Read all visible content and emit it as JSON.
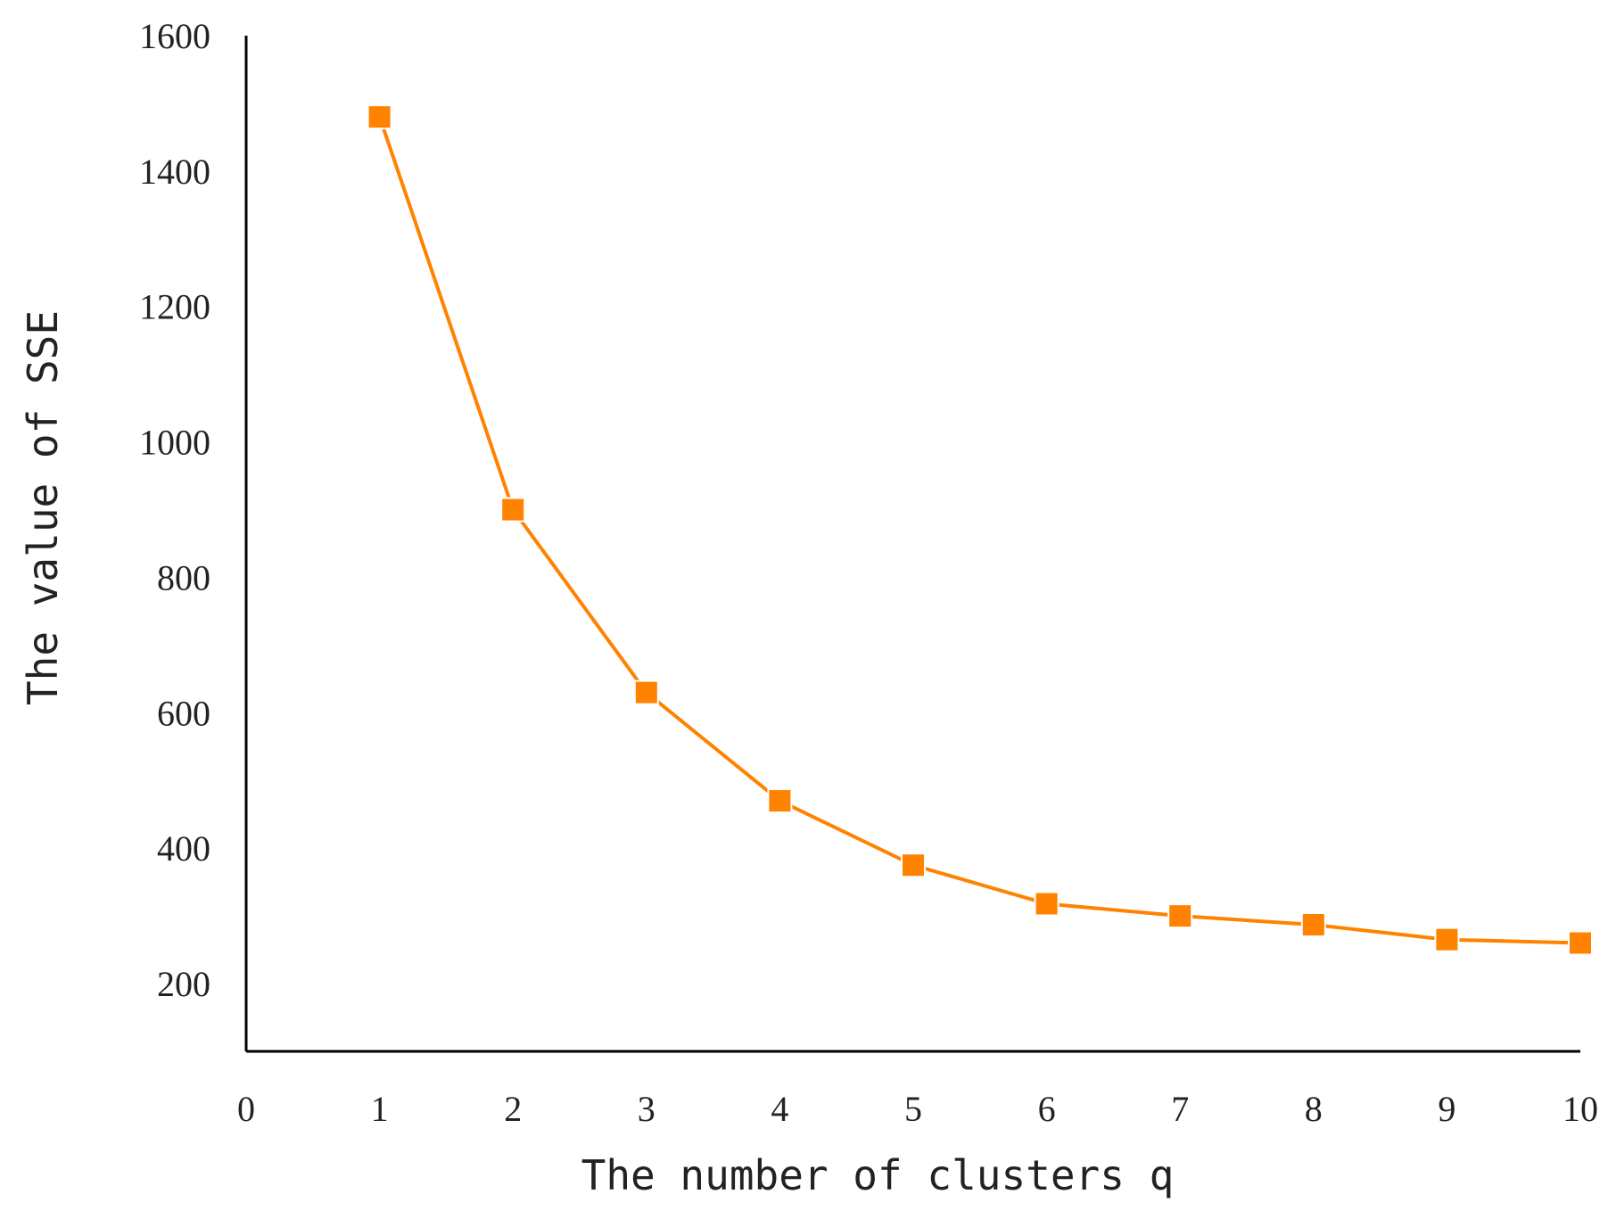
{
  "chart_data": {
    "type": "line",
    "title": "",
    "xlabel": "The number of clusters q",
    "ylabel": "The value of SSE",
    "xlim": [
      0,
      10
    ],
    "ylim": [
      100,
      1600
    ],
    "x_ticks": [
      0,
      1,
      2,
      3,
      4,
      5,
      6,
      7,
      8,
      9,
      10
    ],
    "y_ticks": [
      200,
      400,
      600,
      800,
      1000,
      1200,
      1400,
      1600
    ],
    "grid": false,
    "legend": "none",
    "marker": "square",
    "series": [
      {
        "x": [
          1,
          2,
          3,
          4,
          5,
          6,
          7,
          8,
          9,
          10
        ],
        "values": [
          1480,
          900,
          630,
          470,
          375,
          318,
          300,
          287,
          265,
          260
        ],
        "color": "#FF8200"
      }
    ]
  }
}
